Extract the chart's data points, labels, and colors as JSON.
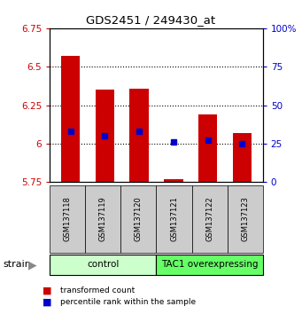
{
  "title": "GDS2451 / 249430_at",
  "samples": [
    "GSM137118",
    "GSM137119",
    "GSM137120",
    "GSM137121",
    "GSM137122",
    "GSM137123"
  ],
  "group_labels": [
    "control",
    "TAC1 overexpressing"
  ],
  "group_colors": [
    "#ccffcc",
    "#66ff66"
  ],
  "red_values": [
    6.57,
    6.35,
    6.36,
    5.77,
    6.19,
    6.07
  ],
  "blue_values": [
    33,
    30,
    33,
    26,
    27,
    25
  ],
  "ylim_left": [
    5.75,
    6.75
  ],
  "ylim_right": [
    0,
    100
  ],
  "yticks_left": [
    5.75,
    6.0,
    6.25,
    6.5,
    6.75
  ],
  "ytick_labels_left": [
    "5.75",
    "6",
    "6.25",
    "6.5",
    "6.75"
  ],
  "yticks_right": [
    0,
    25,
    50,
    75,
    100
  ],
  "ytick_labels_right": [
    "0",
    "25",
    "50",
    "75",
    "100%"
  ],
  "bar_bottom": 5.75,
  "red_color": "#cc0000",
  "blue_color": "#0000cc",
  "bar_width": 0.55,
  "bg_color": "#ffffff",
  "label_box_color": "#cccccc",
  "legend_red": "transformed count",
  "legend_blue": "percentile rank within the sample",
  "grid_yticks": [
    6.0,
    6.25,
    6.5
  ]
}
